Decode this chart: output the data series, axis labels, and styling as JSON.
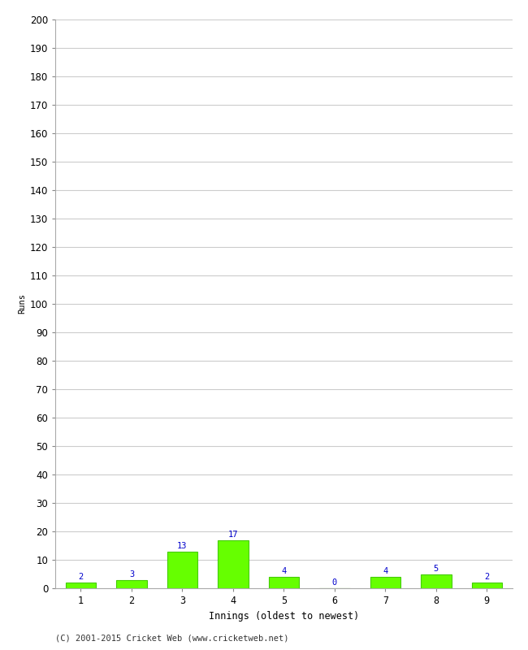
{
  "xlabel": "Innings (oldest to newest)",
  "ylabel": "Runs",
  "categories": [
    "1",
    "2",
    "3",
    "4",
    "5",
    "6",
    "7",
    "8",
    "9"
  ],
  "values": [
    2,
    3,
    13,
    17,
    4,
    0,
    4,
    5,
    2
  ],
  "bar_color": "#66ff00",
  "bar_edge_color": "#44cc00",
  "annotation_color": "#0000cc",
  "ylim": [
    0,
    200
  ],
  "yticks": [
    0,
    10,
    20,
    30,
    40,
    50,
    60,
    70,
    80,
    90,
    100,
    110,
    120,
    130,
    140,
    150,
    160,
    170,
    180,
    190,
    200
  ],
  "background_color": "#ffffff",
  "grid_color": "#cccccc",
  "footer_text": "(C) 2001-2015 Cricket Web (www.cricketweb.net)",
  "annotation_fontsize": 7.5,
  "axis_tick_fontsize": 8.5,
  "xlabel_fontsize": 8.5,
  "ylabel_fontsize": 7.5,
  "footer_fontsize": 7.5
}
